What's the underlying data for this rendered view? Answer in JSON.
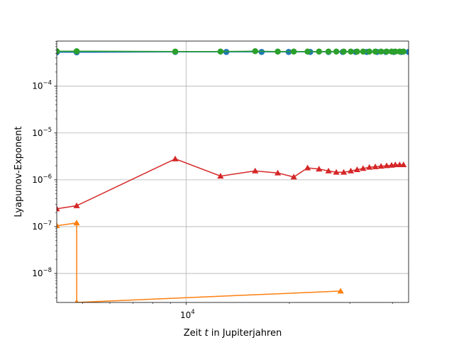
{
  "chart_data": {
    "type": "line",
    "title": "",
    "xlabel": "Zeit t in Jupiterjahren",
    "xlabel_prefix": "Zeit ",
    "xlabel_var": "t",
    "xlabel_suffix": " in Jupiterjahren",
    "ylabel": "Lyapunov-Exponent",
    "xscale": "log",
    "yscale": "log",
    "xlim": [
      4200,
      44500
    ],
    "ylim": [
      2.4e-09,
      0.00092
    ],
    "grid": true,
    "x_major_ticks": [
      {
        "value": 10000,
        "label": "10",
        "exp": "4"
      }
    ],
    "x_minor_ticks": [
      5000,
      6000,
      7000,
      8000,
      9000,
      20000,
      30000,
      40000
    ],
    "y_major_ticks": [
      {
        "value": 1e-08,
        "label": "10",
        "exp": "−8"
      },
      {
        "value": 1e-07,
        "label": "10",
        "exp": "−7"
      },
      {
        "value": 1e-06,
        "label": "10",
        "exp": "−6"
      },
      {
        "value": 1e-05,
        "label": "10",
        "exp": "−5"
      },
      {
        "value": 0.0001,
        "label": "10",
        "exp": "−4"
      }
    ],
    "series": [
      {
        "name": "blue-circles",
        "color": "#1f77b4",
        "marker": "circle",
        "x": [
          4200,
          4800,
          9300,
          13100,
          16600,
          19900,
          23000,
          26000,
          28600,
          31200,
          33600,
          36000,
          38200,
          40300,
          42400,
          44500
        ],
        "y": [
          0.00053,
          0.00053,
          0.00054,
          0.00054,
          0.00054,
          0.00054,
          0.00054,
          0.00054,
          0.00054,
          0.00054,
          0.00054,
          0.00054,
          0.00054,
          0.00054,
          0.00054,
          0.00054
        ]
      },
      {
        "name": "orange-arrows",
        "color": "#ff7f0e",
        "marker": "triangle",
        "x": [
          4200,
          4800,
          4800,
          28200
        ],
        "y": [
          1.05e-07,
          1.2e-07,
          2.4e-09,
          4.2e-09
        ]
      },
      {
        "name": "green-circles",
        "color": "#2ca02c",
        "marker": "circle",
        "x": [
          4200,
          4800,
          9300,
          12600,
          15900,
          18500,
          20600,
          22600,
          24400,
          26000,
          27400,
          28800,
          30200,
          31500,
          32800,
          34200,
          35600,
          37000,
          38400,
          39700,
          40700,
          41900,
          43000
        ],
        "y": [
          0.00056,
          0.00056,
          0.00055,
          0.00055,
          0.00056,
          0.00055,
          0.00055,
          0.00055,
          0.00055,
          0.00055,
          0.00055,
          0.00055,
          0.00055,
          0.00055,
          0.00055,
          0.00055,
          0.00055,
          0.00055,
          0.00055,
          0.00055,
          0.00055,
          0.00055,
          0.00055
        ]
      },
      {
        "name": "red-triangles",
        "color": "#d62728",
        "marker": "triangle",
        "x": [
          4200,
          4800,
          9300,
          12600,
          15900,
          18500,
          20600,
          22600,
          24400,
          26000,
          27400,
          28800,
          30200,
          31500,
          32800,
          34200,
          35600,
          37000,
          38400,
          39700,
          40700,
          41900,
          43000
        ],
        "y": [
          2.4e-07,
          2.8e-07,
          2.8e-06,
          1.2e-06,
          1.55e-06,
          1.4e-06,
          1.15e-06,
          1.8e-06,
          1.7e-06,
          1.55e-06,
          1.45e-06,
          1.45e-06,
          1.55e-06,
          1.65e-06,
          1.75e-06,
          1.85e-06,
          1.9e-06,
          1.95e-06,
          2e-06,
          2.05e-06,
          2.1e-06,
          2.1e-06,
          2.1e-06
        ]
      }
    ]
  }
}
